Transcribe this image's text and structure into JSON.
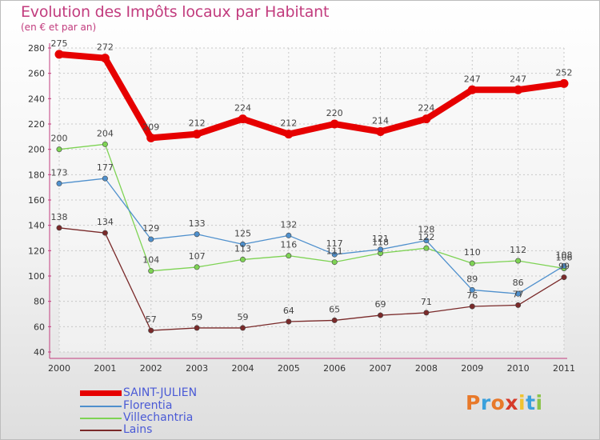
{
  "title": "Evolution des Impôts locaux par Habitant",
  "subtitle": "(en € et par an)",
  "logo": {
    "letters": [
      "P",
      "r",
      "o",
      "x",
      "i",
      "t",
      "i"
    ],
    "colors": [
      "#e8792a",
      "#3aa0dc",
      "#e8792a",
      "#d63a2a",
      "#f0c330",
      "#3aa0dc",
      "#8bc34a"
    ]
  },
  "chart_data": {
    "type": "line",
    "x": [
      "2000",
      "2001",
      "2002",
      "2003",
      "2004",
      "2005",
      "2006",
      "2007",
      "2008",
      "2009",
      "2010",
      "2011"
    ],
    "ylim": [
      40,
      280
    ],
    "yticks": [
      "40",
      "60",
      "80",
      "100",
      "120",
      "140",
      "160",
      "180",
      "200",
      "220",
      "240",
      "260",
      "280"
    ],
    "grid": true,
    "legend_position": "bottom-left",
    "series": [
      {
        "name": "SAINT-JULIEN",
        "color": "#e60000",
        "values": [
          275,
          272,
          209,
          212,
          224,
          212,
          220,
          214,
          224,
          247,
          247,
          252
        ],
        "labels": [
          "275",
          "272",
          "209",
          "212",
          "224",
          "212",
          "220",
          "214",
          "224",
          "247",
          "247",
          "252"
        ]
      },
      {
        "name": "Florentia",
        "color": "#4f90cd",
        "values": [
          173,
          177,
          129,
          133,
          125,
          132,
          117,
          121,
          128,
          89,
          86,
          108
        ],
        "labels": [
          "173",
          "177",
          "129",
          "133",
          "125",
          "132",
          "117",
          "121",
          "128",
          "89",
          "86",
          "108"
        ]
      },
      {
        "name": "Villechantria",
        "color": "#7ed354",
        "values": [
          200,
          204,
          104,
          107,
          113,
          116,
          111,
          118,
          122,
          110,
          112,
          106
        ],
        "labels": [
          "200",
          "204",
          "104",
          "107",
          "113",
          "116",
          "111",
          "118",
          "122",
          "110",
          "112",
          "106"
        ]
      },
      {
        "name": "Lains",
        "color": "#7a2a2a",
        "values": [
          138,
          134,
          57,
          59,
          59,
          64,
          65,
          69,
          71,
          76,
          77,
          99
        ],
        "labels": [
          "138",
          "134",
          "57",
          "59",
          "59",
          "64",
          "65",
          "69",
          "71",
          "76",
          "77",
          "99"
        ]
      }
    ]
  }
}
